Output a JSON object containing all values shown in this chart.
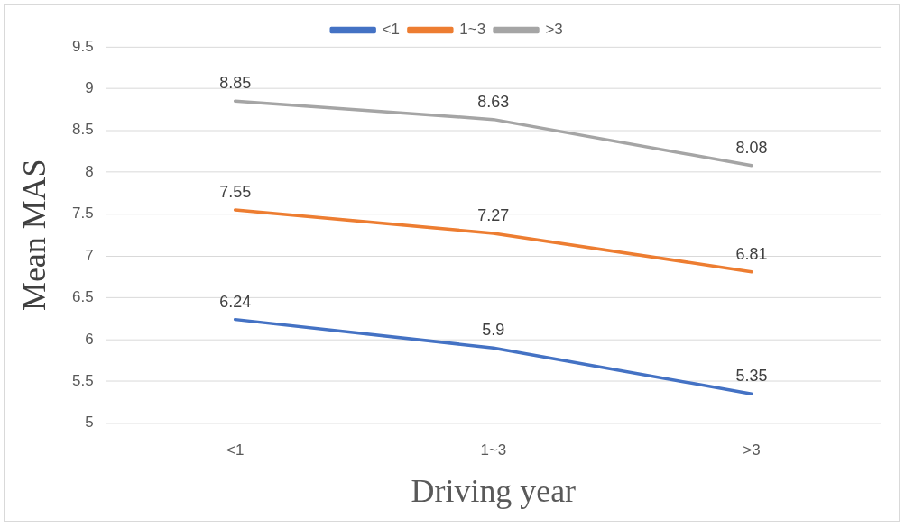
{
  "chart_data": {
    "type": "line",
    "xlabel": "Driving year",
    "ylabel": "Mean MAS",
    "categories": [
      "<1",
      "1~3",
      ">3"
    ],
    "series": [
      {
        "name": "<1",
        "color": "#4472c4",
        "values": [
          6.24,
          5.9,
          5.35
        ]
      },
      {
        "name": "1~3",
        "color": "#ed7d31",
        "values": [
          7.55,
          7.27,
          6.81
        ]
      },
      {
        "name": ">3",
        "color": "#a5a5a5",
        "values": [
          8.85,
          8.63,
          8.08
        ]
      }
    ],
    "ylim": [
      5,
      9.5
    ],
    "yticks": [
      5,
      5.5,
      6,
      6.5,
      7,
      7.5,
      8,
      8.5,
      9,
      9.5
    ],
    "grid": "y",
    "legend": "top",
    "marker": "none",
    "line_style": "solid",
    "data_labels": true
  }
}
